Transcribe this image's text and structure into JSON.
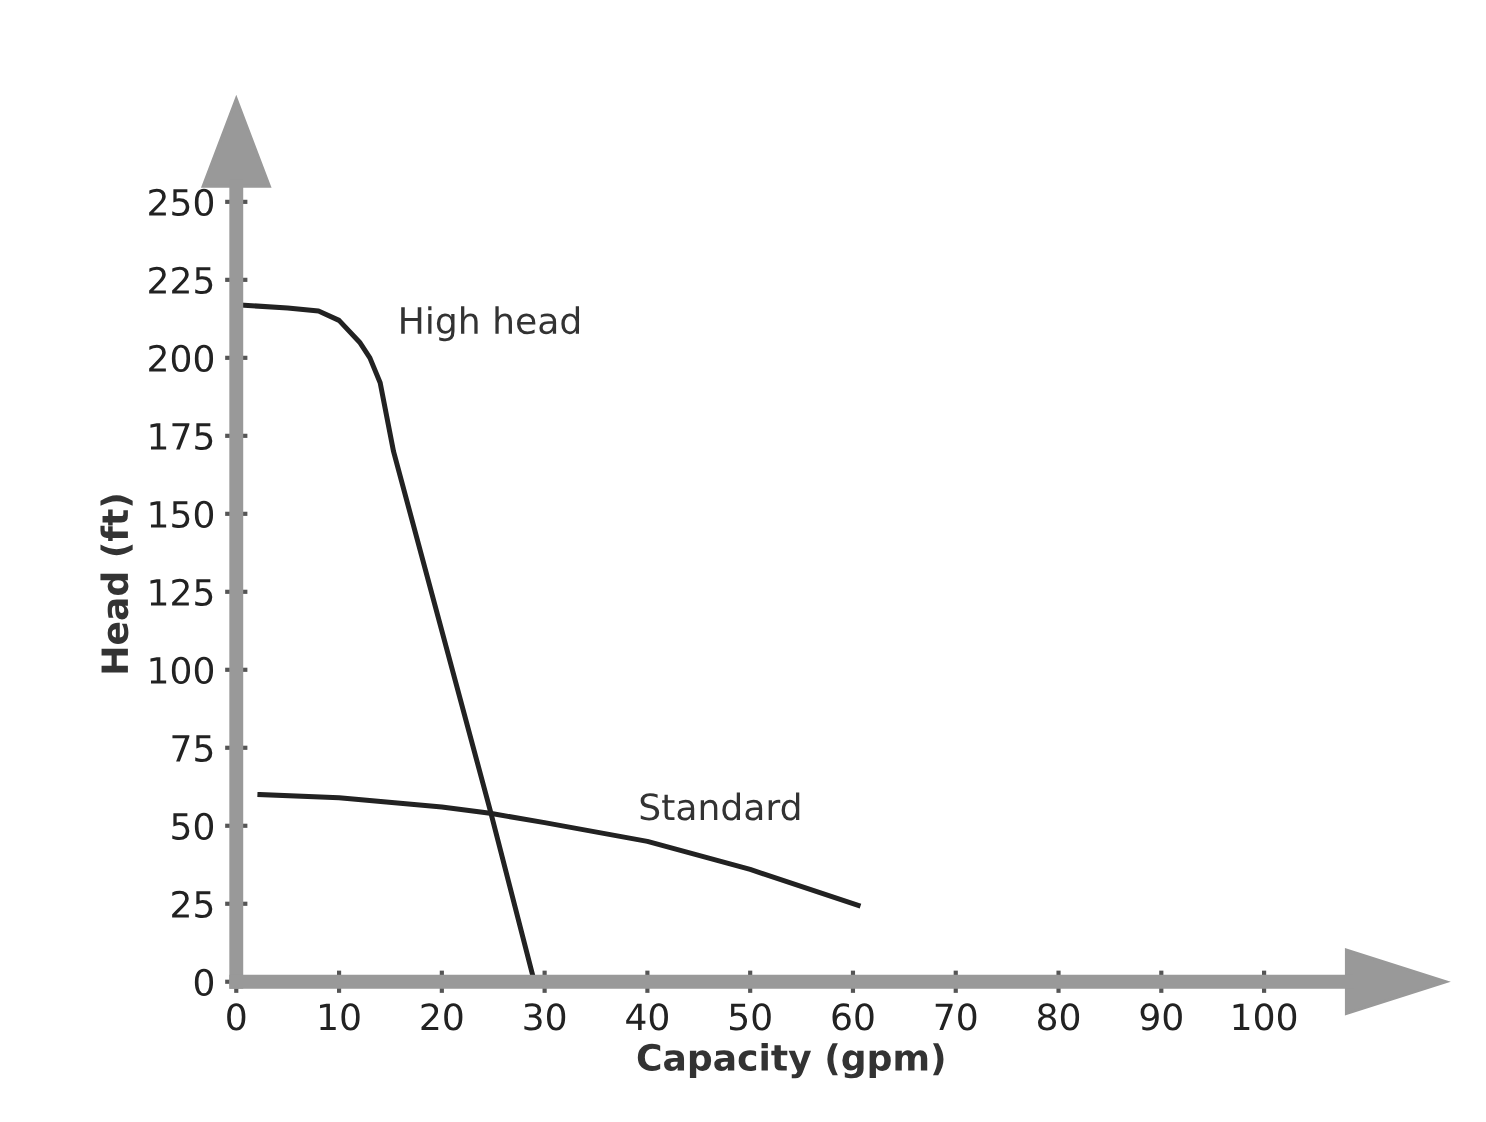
{
  "chart_data": {
    "type": "line",
    "xlabel": "Capacity (gpm)",
    "ylabel": "Head (ft)",
    "xlim": [
      0,
      108
    ],
    "ylim": [
      0,
      255
    ],
    "xticks": [
      0,
      10,
      20,
      30,
      40,
      50,
      60,
      70,
      80,
      90,
      100
    ],
    "yticks": [
      0,
      25,
      50,
      75,
      100,
      125,
      150,
      175,
      200,
      225,
      250
    ],
    "grid": false,
    "legend": false,
    "marker": "none",
    "line_style": "solid",
    "series": [
      {
        "name": "High head",
        "color": "#222222",
        "x": [
          0,
          5,
          8,
          10,
          12,
          13,
          14,
          15.3,
          24.7,
          29
        ],
        "values": [
          217,
          216,
          215,
          212,
          205,
          200,
          192,
          170,
          55,
          0
        ]
      },
      {
        "name": "Standard",
        "color": "#222222",
        "x": [
          2.3,
          10,
          20,
          24.7,
          30,
          40,
          50,
          60.5
        ],
        "values": [
          60,
          59,
          56,
          54,
          51,
          45,
          36,
          24.5
        ]
      }
    ]
  }
}
